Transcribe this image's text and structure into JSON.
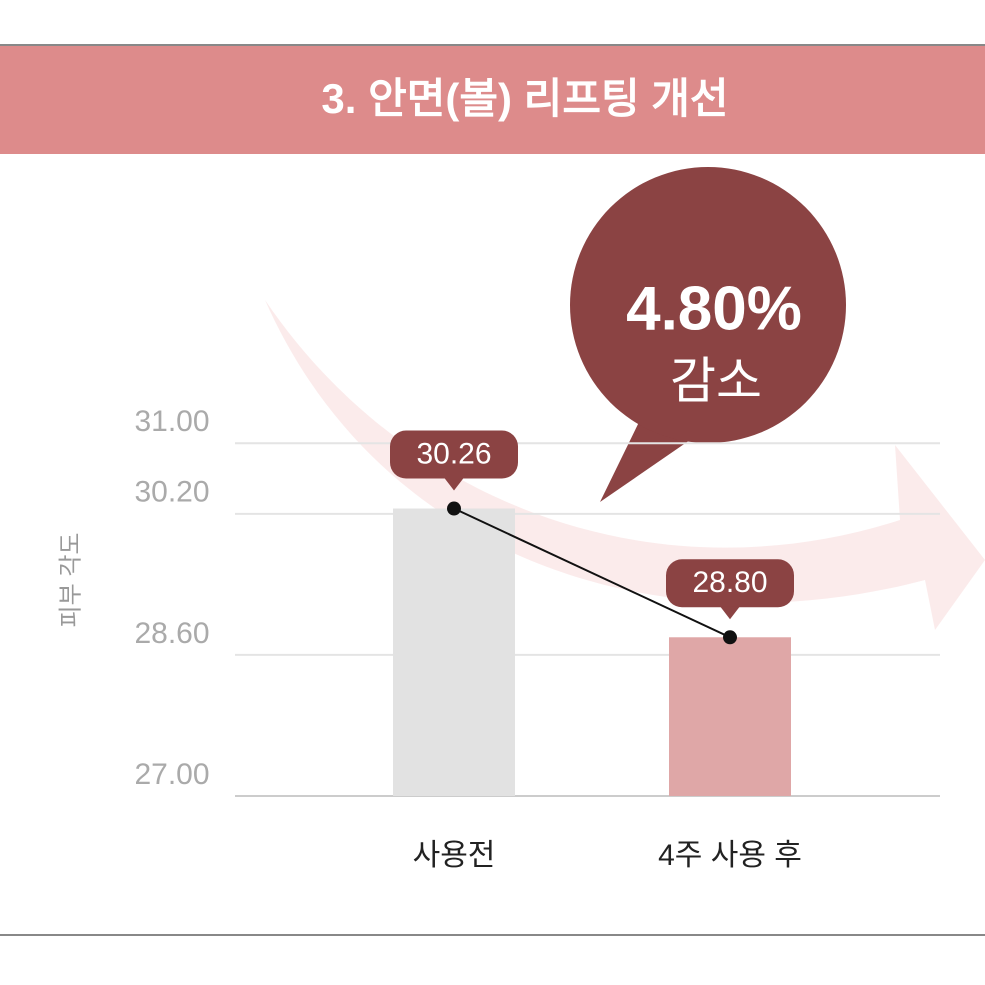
{
  "chart_data": {
    "type": "bar",
    "title": "3. 안면(볼) 리프팅 개선",
    "y_label": "피부 각도",
    "categories": [
      "사용전",
      "4주 사용 후"
    ],
    "values": [
      30.26,
      28.8
    ],
    "value_labels": [
      "30.26",
      "28.80"
    ],
    "colors": [
      "#e2e2e2",
      "#dfa7a7"
    ],
    "line_color": "#111111",
    "label_color": "#8b4343",
    "annotation": {
      "value": "4.80%",
      "text": "감소"
    },
    "ylim": [
      27,
      31.4
    ],
    "yticks": [
      {
        "value": 27,
        "label": "27.00"
      },
      {
        "value": 28.6,
        "label": "28.60"
      },
      {
        "value": 30.2,
        "label": "30.20"
      },
      {
        "value": 31,
        "label": "31.00"
      }
    ],
    "grid": true
  }
}
